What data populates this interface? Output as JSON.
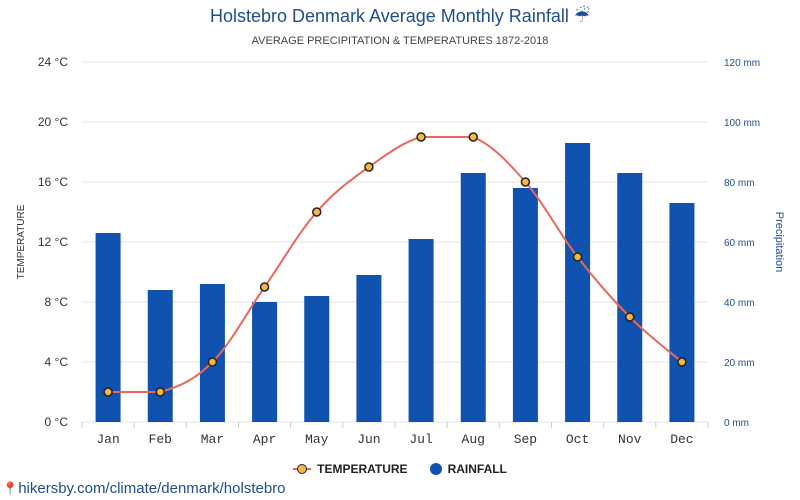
{
  "title": "Holstebro Denmark Average Monthly Rainfall ☔",
  "subtitle": "AVERAGE PRECIPITATION & TEMPERATURES 1872-2018",
  "footer_url": "hikersby.com/climate/denmark/holstebro",
  "legend": {
    "temperature": "TEMPERATURE",
    "rainfall": "RAINFALL"
  },
  "colors": {
    "bar": "#0f52b0",
    "line": "#e8685f",
    "point_fill": "#f5b942",
    "title": "#1f4e8c",
    "grid": "#e6e6e6"
  },
  "chart_data": {
    "type": "bar",
    "categories": [
      "Jan",
      "Feb",
      "Mar",
      "Apr",
      "May",
      "Jun",
      "Jul",
      "Aug",
      "Sep",
      "Oct",
      "Nov",
      "Dec"
    ],
    "series": [
      {
        "name": "RAINFALL",
        "type": "bar",
        "axis": "right",
        "values": [
          63,
          44,
          46,
          40,
          42,
          49,
          61,
          83,
          78,
          93,
          83,
          73
        ]
      },
      {
        "name": "TEMPERATURE",
        "type": "line",
        "axis": "left",
        "values": [
          2,
          2,
          4,
          9,
          14,
          17,
          19,
          19,
          16,
          11,
          7,
          4
        ]
      }
    ],
    "ylabel_left": "TEMPERATURE",
    "ylabel_right": "Precipitation",
    "ylim_left": [
      0,
      24
    ],
    "ylim_right": [
      0,
      120
    ],
    "yticks_left": [
      "0 °C",
      "4 °C",
      "8 °C",
      "12 °C",
      "16 °C",
      "20 °C",
      "24 °C"
    ],
    "yticks_right": [
      "0 mm",
      "20 mm",
      "40 mm",
      "60 mm",
      "80 mm",
      "100 mm",
      "120 mm"
    ],
    "grid": true,
    "legend_position": "bottom"
  }
}
